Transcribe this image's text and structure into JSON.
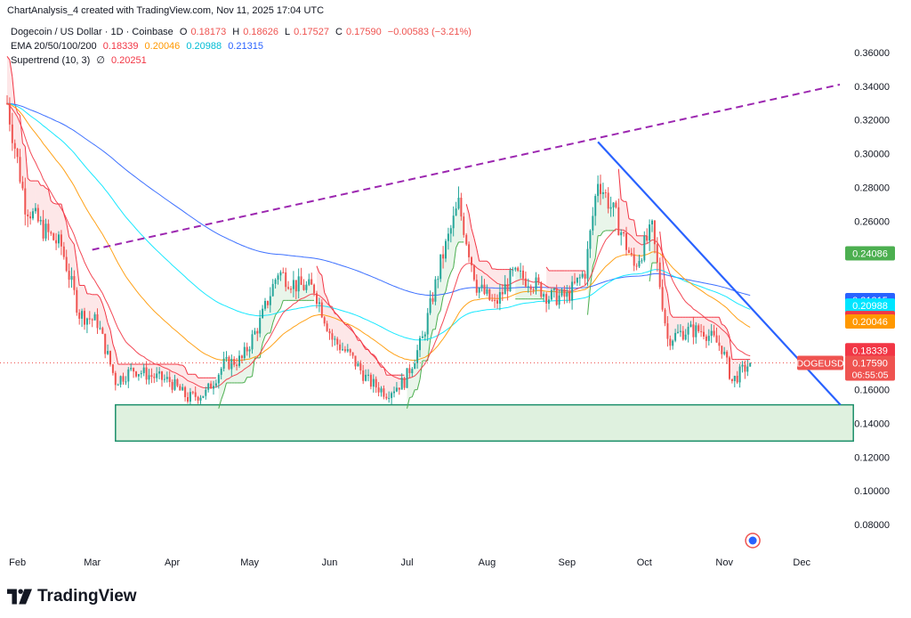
{
  "header": {
    "text": "ChartAnalysis_4 created with TradingView.com, Nov 11, 2025 17:04 UTC"
  },
  "legend": {
    "title": "Dogecoin / US Dollar · 1D · Coinbase",
    "ohlc": {
      "o_label": "O",
      "o": "0.18173",
      "h_label": "H",
      "h": "0.18626",
      "l_label": "L",
      "l": "0.17527",
      "c_label": "C",
      "c": "0.17590",
      "change": "−0.00583 (−3.21%)"
    },
    "ema": {
      "label": "EMA 20/50/100/200",
      "v20": "0.18339",
      "v50": "0.20046",
      "v100": "0.20988",
      "v200": "0.21315"
    },
    "supertrend": {
      "label": "Supertrend (10, 3)",
      "symbol": "∅",
      "value": "0.20251"
    }
  },
  "colors": {
    "ema20": "#f23645",
    "ema50": "#ff9800",
    "ema100": "#00e5ff",
    "ema200": "#2962ff",
    "supertrend_bear": "#f23645",
    "supertrend_bull": "#4caf50",
    "up": "#26a69a",
    "down": "#ef5350",
    "trendline_up": "#9c27b0",
    "trendline_down": "#2962ff",
    "zone": "#4caf50"
  },
  "price_axis": {
    "ticks": [
      "0.36000",
      "0.34000",
      "0.32000",
      "0.30000",
      "0.28000",
      "0.26000",
      "0.16000",
      "0.14000",
      "0.12000",
      "0.10000",
      "0.08000"
    ],
    "badges": [
      {
        "text": "0.24086",
        "color": "#4caf50",
        "price": 0.24086
      },
      {
        "text": "0.21315",
        "color": "#2962ff",
        "price": 0.21315
      },
      {
        "text": "0.20988",
        "color": "#00e5ff",
        "price": 0.20988
      },
      {
        "text": "0.20251",
        "color": "#f23645",
        "price": 0.20251
      },
      {
        "text": "0.20046",
        "color": "#ff9800",
        "price": 0.20046
      },
      {
        "text": "0.18339",
        "color": "#f23645",
        "price": 0.18339
      }
    ],
    "current": {
      "symbol": "DOGEUSD",
      "price_text": "0.17590",
      "countdown": "06:55:05",
      "price": 0.1759
    }
  },
  "time_axis": {
    "labels": [
      "Feb",
      "Mar",
      "Apr",
      "May",
      "Jun",
      "Jul",
      "Aug",
      "Sep",
      "Oct",
      "Nov",
      "Dec"
    ]
  },
  "chart_data": {
    "type": "candlestick",
    "title": "Dogecoin / US Dollar · 1D · Coinbase",
    "ylim": [
      0.07,
      0.37
    ],
    "price_scale": "linear",
    "grid": false,
    "key_prices": {
      "ema20": 0.18339,
      "ema50": 0.20046,
      "ema100": 0.20988,
      "ema200": 0.21315,
      "supertrend": 0.20251,
      "last_close": 0.1759,
      "green_line": 0.24086
    },
    "support_zone": {
      "start": "2025-03-10",
      "end": "2025-12-21",
      "low": 0.1295,
      "high": 0.151
    },
    "trendline_up": {
      "start_date": "2025-03-01",
      "start_price": 0.243,
      "end_date": "2025-12-31",
      "end_price": 0.341
    },
    "trendline_down": {
      "start_date": "2025-09-13",
      "start_price": 0.307,
      "end_date": "2025-12-16",
      "end_price": 0.151
    },
    "anchor_closes": [
      [
        "2025-01-27",
        0.33
      ],
      [
        "2025-02-03",
        0.27
      ],
      [
        "2025-02-10",
        0.255
      ],
      [
        "2025-02-17",
        0.245
      ],
      [
        "2025-02-24",
        0.205
      ],
      [
        "2025-03-03",
        0.2
      ],
      [
        "2025-03-10",
        0.165
      ],
      [
        "2025-03-17",
        0.172
      ],
      [
        "2025-03-24",
        0.168
      ],
      [
        "2025-03-31",
        0.165
      ],
      [
        "2025-04-07",
        0.155
      ],
      [
        "2025-04-14",
        0.158
      ],
      [
        "2025-04-21",
        0.175
      ],
      [
        "2025-04-28",
        0.178
      ],
      [
        "2025-05-05",
        0.2
      ],
      [
        "2025-05-12",
        0.23
      ],
      [
        "2025-05-19",
        0.222
      ],
      [
        "2025-05-26",
        0.22
      ],
      [
        "2025-06-02",
        0.19
      ],
      [
        "2025-06-09",
        0.18
      ],
      [
        "2025-06-16",
        0.165
      ],
      [
        "2025-06-23",
        0.158
      ],
      [
        "2025-06-30",
        0.165
      ],
      [
        "2025-07-07",
        0.19
      ],
      [
        "2025-07-14",
        0.235
      ],
      [
        "2025-07-21",
        0.27
      ],
      [
        "2025-07-28",
        0.222
      ],
      [
        "2025-08-04",
        0.21
      ],
      [
        "2025-08-11",
        0.228
      ],
      [
        "2025-08-18",
        0.225
      ],
      [
        "2025-08-25",
        0.215
      ],
      [
        "2025-09-01",
        0.215
      ],
      [
        "2025-09-08",
        0.23
      ],
      [
        "2025-09-13",
        0.285
      ],
      [
        "2025-09-20",
        0.262
      ],
      [
        "2025-09-27",
        0.233
      ],
      [
        "2025-10-04",
        0.255
      ],
      [
        "2025-10-10",
        0.19
      ],
      [
        "2025-10-17",
        0.195
      ],
      [
        "2025-10-24",
        0.195
      ],
      [
        "2025-10-31",
        0.185
      ],
      [
        "2025-11-04",
        0.165
      ],
      [
        "2025-11-11",
        0.1759
      ]
    ]
  }
}
